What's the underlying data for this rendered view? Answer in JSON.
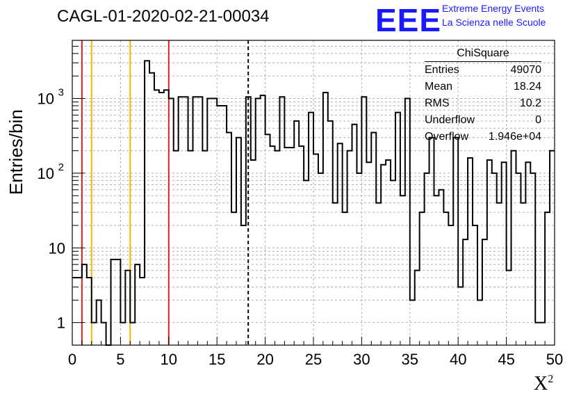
{
  "title": "CAGL-01-2020-02-21-00034",
  "logo": {
    "text": "EEE",
    "line1": "Extreme Energy Events",
    "line2": "La Scienza nelle Scuole",
    "color": "#1a1aff"
  },
  "stats_box": {
    "title": "ChiSquare",
    "rows": [
      {
        "label": "Entries",
        "value": "49070"
      },
      {
        "label": "Mean",
        "value": "18.24"
      },
      {
        "label": "RMS",
        "value": "10.2"
      },
      {
        "label": "Underflow",
        "value": "0"
      },
      {
        "label": "Overflow",
        "value": "1.946e+04"
      }
    ]
  },
  "chart_data": {
    "type": "bar",
    "style": "step-histogram",
    "ylabel": "Entries/bin",
    "xlabel": "X²",
    "xlim": [
      0,
      50
    ],
    "ylim": [
      0.5,
      6000
    ],
    "yscale": "log",
    "grid": true,
    "bin_width": 0.5,
    "x_ticks": [
      "0",
      "5",
      "10",
      "15",
      "20",
      "25",
      "30",
      "35",
      "40",
      "45",
      "50"
    ],
    "y_ticks": [
      {
        "value": 1,
        "label": "1"
      },
      {
        "value": 10,
        "label": "10"
      },
      {
        "value": 100,
        "label": "10",
        "exp": "2"
      },
      {
        "value": 1000,
        "label": "10",
        "exp": "3"
      }
    ],
    "values": [
      4,
      4,
      6,
      4,
      1,
      2,
      1,
      0,
      7,
      7,
      1,
      5,
      1,
      6,
      4,
      3200,
      2200,
      1300,
      1200,
      1300,
      1000,
      200,
      1050,
      1050,
      200,
      1050,
      1050,
      200,
      1000,
      1000,
      800,
      800,
      350,
      30,
      300,
      20,
      1050,
      150,
      1000,
      1100,
      330,
      230,
      200,
      1050,
      220,
      220,
      500,
      230,
      80,
      650,
      180,
      100,
      1200,
      500,
      40,
      250,
      30,
      200,
      450,
      100,
      1050,
      140,
      350,
      40,
      130,
      150,
      80,
      650,
      50,
      1000,
      2,
      5,
      30,
      100,
      300,
      50,
      60,
      30,
      20,
      300,
      3,
      13,
      160,
      20,
      2,
      13,
      150,
      100,
      40,
      140,
      5,
      200,
      100,
      40,
      140,
      100,
      1,
      1,
      30,
      200
    ],
    "markers": [
      {
        "x": 1,
        "color": "#e02020",
        "style": "solid"
      },
      {
        "x": 2,
        "color": "#f0b800",
        "style": "solid"
      },
      {
        "x": 6,
        "color": "#f0b800",
        "style": "solid"
      },
      {
        "x": 10,
        "color": "#e02020",
        "style": "solid"
      },
      {
        "x": 18.24,
        "color": "#000000",
        "style": "dashed"
      }
    ]
  }
}
